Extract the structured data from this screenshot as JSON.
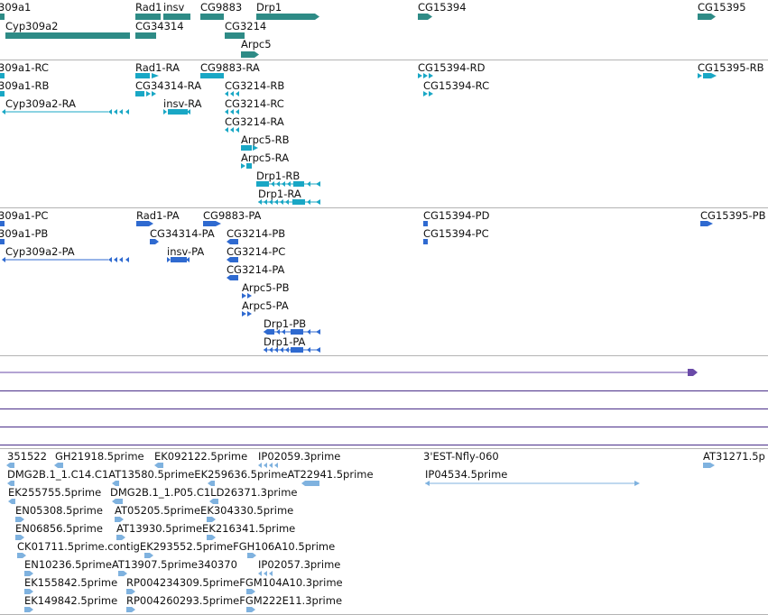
{
  "colors": {
    "gene": "#2e8b86",
    "transcript": "#19a7c5",
    "protein": "#2f6ad0",
    "sequence_line": "#6a4aa8",
    "est": "#7fb2df",
    "separator": "#b4b4b4"
  },
  "tracks": {
    "genes": {
      "labels": [
        {
          "text": "309a1"
        },
        {
          "text": "Cyp309a2"
        },
        {
          "text": "Rad1"
        },
        {
          "text": "insv"
        },
        {
          "text": "CG34314"
        },
        {
          "text": "CG9883"
        },
        {
          "text": "Drp1"
        },
        {
          "text": "CG3214"
        },
        {
          "text": "Arpc5"
        },
        {
          "text": "CG15394"
        },
        {
          "text": "CG15395"
        }
      ]
    },
    "transcripts": {
      "labels": [
        {
          "text": "309a1-RC"
        },
        {
          "text": "309a1-RB"
        },
        {
          "text": "Cyp309a2-RA"
        },
        {
          "text": "Rad1-RA"
        },
        {
          "text": "CG34314-RA"
        },
        {
          "text": "insv-RA"
        },
        {
          "text": "CG9883-RA"
        },
        {
          "text": "CG3214-RB"
        },
        {
          "text": "CG3214-RC"
        },
        {
          "text": "CG3214-RA"
        },
        {
          "text": "Arpc5-RB"
        },
        {
          "text": "Arpc5-RA"
        },
        {
          "text": "Drp1-RB"
        },
        {
          "text": "Drp1-RA"
        },
        {
          "text": "CG15394-RD"
        },
        {
          "text": "CG15394-RC"
        },
        {
          "text": "CG15395-RB"
        }
      ]
    },
    "proteins": {
      "labels": [
        {
          "text": "309a1-PC"
        },
        {
          "text": "309a1-PB"
        },
        {
          "text": "Cyp309a2-PA"
        },
        {
          "text": "Rad1-PA"
        },
        {
          "text": "CG34314-PA"
        },
        {
          "text": "insv-PA"
        },
        {
          "text": "CG9883-PA"
        },
        {
          "text": "CG3214-PB"
        },
        {
          "text": "CG3214-PC"
        },
        {
          "text": "CG3214-PA"
        },
        {
          "text": "Arpc5-PB"
        },
        {
          "text": "Arpc5-PA"
        },
        {
          "text": "Drp1-PB"
        },
        {
          "text": "Drp1-PA"
        },
        {
          "text": "CG15394-PD"
        },
        {
          "text": "CG15394-PC"
        },
        {
          "text": "CG15395-PB"
        }
      ]
    },
    "ests": {
      "labels": [
        {
          "text": "351522"
        },
        {
          "text": "GH21918.5prime"
        },
        {
          "text": "EK092122.5prime"
        },
        {
          "text": "IP02059.3prime"
        },
        {
          "text": "3'EST-Nfly-060"
        },
        {
          "text": "AT31271.5p"
        },
        {
          "text": "DMG2B.1_1.C14.C1AT13580.5primeEK259636.5primeAT22941.5prime"
        },
        {
          "text": "IP04534.5prime"
        },
        {
          "text": "EK255755.5prime"
        },
        {
          "text": "DMG2B.1_1.P05.C1LD26371.3prime"
        },
        {
          "text": "EN05308.5prime"
        },
        {
          "text": "AT05205.5primeEK304330.5prime"
        },
        {
          "text": "EN06856.5prime"
        },
        {
          "text": "AT13930.5primeEK216341.5prime"
        },
        {
          "text": "CK01711.5prime.contigEK293552.5primeFGH106A10.5prime"
        },
        {
          "text": "EN10236.5primeAT13907.5prime340370"
        },
        {
          "text": "IP02057.3prime"
        },
        {
          "text": "EK155842.5prime"
        },
        {
          "text": "RP004234309.5primeFGM104A10.3prime"
        },
        {
          "text": "EK149842.5prime"
        },
        {
          "text": "RP004260293.5primeFGM222E11.3prime"
        }
      ]
    }
  }
}
